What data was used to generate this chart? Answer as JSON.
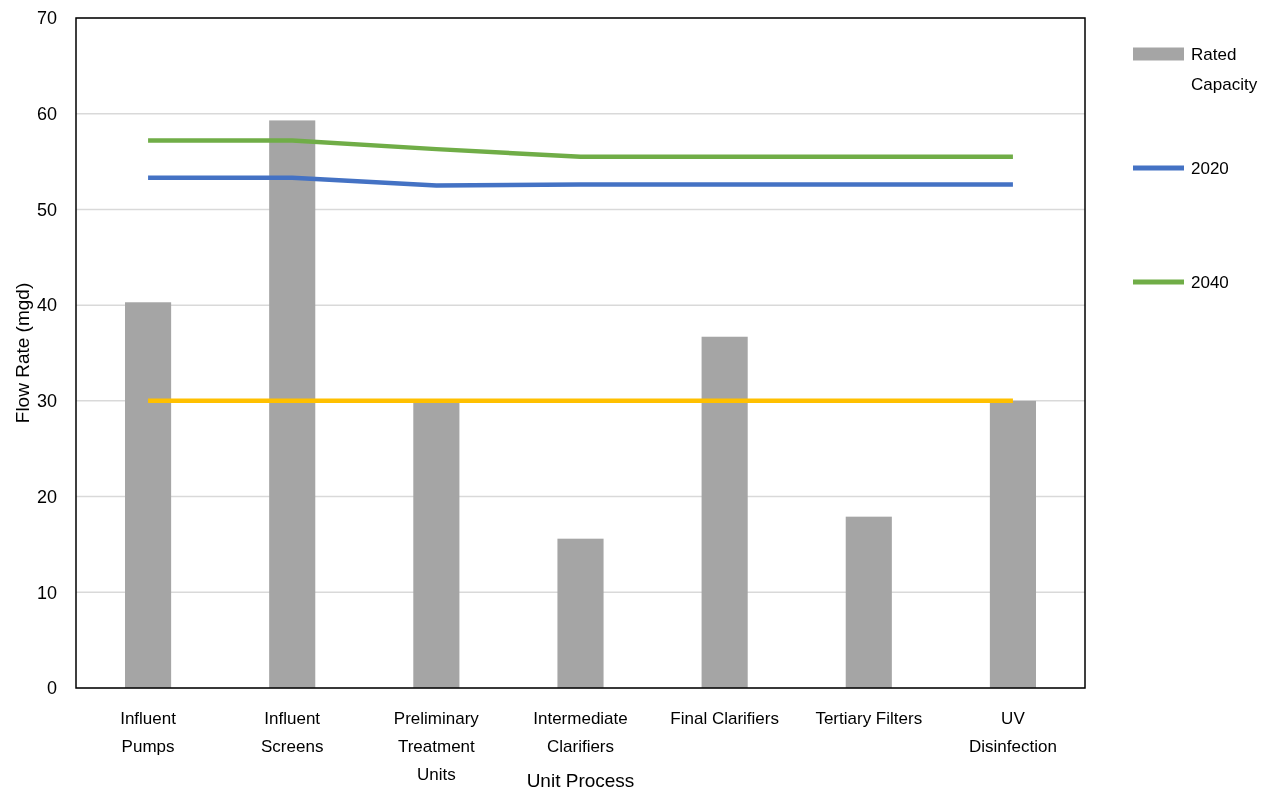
{
  "chart_data": {
    "type": "bar",
    "xlabel": "Unit Process",
    "ylabel": "Flow Rate (mgd)",
    "categories": [
      "Influent Pumps",
      "Influent Screens",
      "Preliminary Treatment Units",
      "Intermediate Clarifiers",
      "Final Clarifiers",
      "Tertiary Filters",
      "UV Disinfection"
    ],
    "series": [
      {
        "name": "Rated Capacity",
        "color": "#a5a5a5",
        "values": [
          40.3,
          59.3,
          30,
          15.6,
          36.7,
          17.9,
          30
        ]
      },
      {
        "name": "2020",
        "type": "line",
        "color": "#4472c4",
        "values": [
          53.3,
          53.3,
          52.5,
          52.6,
          52.6,
          52.6,
          52.6
        ]
      },
      {
        "name": "2040",
        "type": "line",
        "color": "#70ad47",
        "values": [
          57.2,
          57.2,
          56.3,
          55.5,
          55.5,
          55.5,
          55.5
        ]
      },
      {
        "type": "line",
        "color": "#ffc000",
        "values": [
          30,
          30,
          30,
          30,
          30,
          30,
          30
        ]
      }
    ],
    "ylim": [
      0,
      70
    ],
    "yticks": [
      0,
      10,
      20,
      30,
      40,
      50,
      60,
      70
    ],
    "grid": "y",
    "legend": "right"
  }
}
